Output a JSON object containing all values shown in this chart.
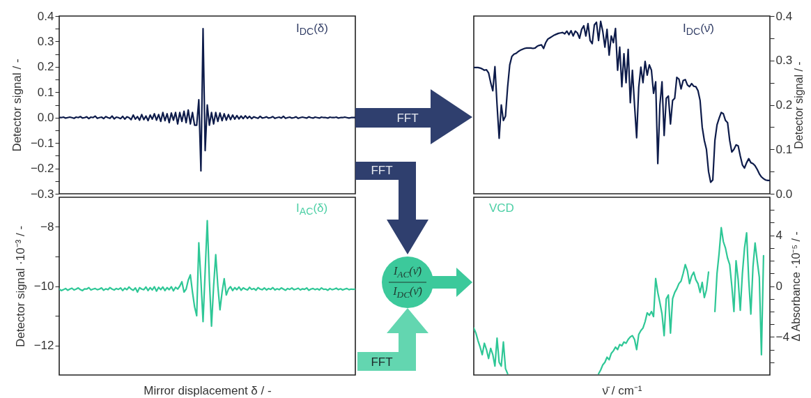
{
  "chart_data": [
    {
      "type": "line",
      "ylabel": "Detector signal / -",
      "ylim": [
        -0.3,
        0.4
      ],
      "yticks": [
        -0.3,
        {
          "value": -0.25,
          "label": null
        },
        -0.2,
        {
          "value": -0.15,
          "label": null
        },
        -0.1,
        {
          "value": -0.05,
          "label": null
        },
        {
          "value": 0,
          "label": "0.0"
        },
        {
          "value": 0.05,
          "label": null
        },
        0.1,
        {
          "value": 0.15,
          "label": null
        },
        0.2,
        {
          "value": 0.25,
          "label": null
        },
        0.3,
        {
          "value": 0.35,
          "label": null
        },
        0.4
      ],
      "tick_labels": "y",
      "annotations": [
        "I$_{DC}$(δ)"
      ],
      "color": "#0d1b4a",
      "categories": [
        null,
        null,
        null,
        null,
        null,
        null,
        null,
        null,
        null,
        null,
        null,
        null,
        null,
        null,
        null,
        null,
        null,
        null,
        null,
        null,
        null,
        null,
        null,
        null,
        null,
        null,
        null,
        null,
        null,
        null,
        null,
        null,
        null,
        null,
        null,
        null,
        null,
        null,
        null,
        null,
        null,
        null,
        null,
        null,
        null,
        null,
        null,
        null,
        null,
        null,
        null,
        null,
        null,
        null,
        null,
        null,
        null,
        null,
        null,
        null,
        null,
        null,
        null,
        null,
        null,
        null,
        null,
        null,
        null,
        null,
        null,
        null,
        null,
        null,
        null,
        null,
        null,
        null,
        null,
        null,
        null,
        null,
        null,
        null,
        null,
        null,
        null,
        null,
        null,
        null,
        null,
        null,
        null,
        null,
        null,
        null,
        null,
        null,
        null,
        null,
        null,
        null,
        null,
        null,
        null,
        null,
        null,
        null,
        null,
        null,
        null,
        null,
        null,
        null,
        null,
        null,
        null,
        null,
        null,
        null,
        null,
        null,
        null,
        null,
        null,
        null,
        null,
        null,
        null,
        null,
        null,
        null,
        null,
        null,
        null,
        null,
        null,
        null,
        null,
        null,
        null
      ],
      "values": [
        0,
        0,
        0.002,
        -0.002,
        0,
        0.002,
        0,
        -0.003,
        0.002,
        0,
        0.004,
        -0.002,
        0,
        0.003,
        -0.004,
        0.002,
        0,
        0.006,
        -0.003,
        0,
        0.002,
        -0.004,
        0.004,
        0,
        -0.003,
        0.006,
        -0.005,
        0.002,
        0,
        -0.004,
        0.005,
        -0.006,
        0.003,
        0,
        -0.008,
        0.01,
        -0.006,
        0.004,
        -0.01,
        0.012,
        -0.008,
        0.006,
        -0.012,
        0.01,
        -0.006,
        0.015,
        -0.01,
        0.012,
        -0.015,
        0.02,
        -0.012,
        0.015,
        -0.02,
        0.018,
        -0.01,
        0.02,
        -0.025,
        0.02,
        -0.015,
        0.025,
        -0.02,
        0.03,
        -0.025,
        0.02,
        -0.03,
        -0.03,
        0.07,
        -0.21,
        0.35,
        -0.13,
        0.05,
        -0.03,
        0.02,
        -0.025,
        0.02,
        -0.015,
        0.018,
        -0.012,
        0.015,
        -0.01,
        0.012,
        -0.008,
        0.01,
        -0.006,
        0.008,
        -0.005,
        0.006,
        -0.004,
        0.007,
        -0.003,
        0.005,
        -0.004,
        0.003,
        0,
        -0.003,
        0.005,
        -0.002,
        0,
        0.003,
        -0.002,
        0,
        0.004,
        -0.003,
        0,
        0.002,
        -0.002,
        0.005,
        -0.003,
        0,
        0.002,
        -0.002,
        0,
        0.003,
        -0.003,
        0,
        0.002,
        0,
        -0.002,
        0.003,
        0,
        -0.002,
        0.002,
        0,
        -0.002,
        0.002,
        0,
        0,
        -0.002,
        0.002,
        0,
        0,
        0.002,
        -0.002,
        0,
        0,
        0.002,
        0,
        -0.002,
        0,
        0,
        0
      ]
    },
    {
      "type": "line",
      "ylabel": "Detector signal / -",
      "ylim": [
        0,
        0.4
      ],
      "yticks": [
        {
          "value": 0,
          "label": "0.0"
        },
        {
          "value": 0.05,
          "label": null
        },
        0.1,
        {
          "value": 0.15,
          "label": null
        },
        0.2,
        {
          "value": 0.25,
          "label": null
        },
        0.3,
        {
          "value": 0.35,
          "label": null
        },
        0.4
      ],
      "tick_labels": "y",
      "annotations": [
        "I$_{DC}$(ν̄)"
      ],
      "color": "#0d1b4a",
      "categories": [
        null,
        null,
        null,
        null,
        null,
        null,
        null,
        null,
        null,
        null,
        null,
        null,
        null,
        null,
        null,
        null,
        null,
        null,
        null,
        null,
        null,
        null,
        null,
        null,
        null,
        null,
        null,
        null,
        null,
        null,
        null,
        null,
        null,
        null,
        null,
        null,
        null,
        null,
        null,
        null,
        null,
        null,
        null,
        null,
        null,
        null,
        null,
        null,
        null,
        null,
        null,
        null,
        null,
        null,
        null,
        null,
        null,
        null,
        null,
        null,
        null,
        null,
        null,
        null,
        null,
        null,
        null,
        null,
        null,
        null,
        null,
        null,
        null,
        null,
        null,
        null,
        null,
        null,
        null,
        null,
        null,
        null,
        null,
        null,
        null,
        null,
        null,
        null,
        null,
        null,
        null,
        null,
        null,
        null,
        null,
        null,
        null,
        null,
        null,
        null,
        null,
        null,
        null,
        null,
        null,
        null,
        null,
        null,
        null,
        null,
        null,
        null,
        null,
        null,
        null,
        null,
        null,
        null,
        null,
        null,
        null,
        null,
        null,
        null,
        null,
        null,
        null,
        null,
        null,
        null,
        null,
        null,
        null,
        null,
        null,
        null,
        null,
        null,
        null,
        null,
        null
      ],
      "values": [
        0.284,
        0.284,
        0.284,
        0.283,
        0.281,
        0.278,
        0.279,
        0.272,
        0.25,
        0.232,
        0.286,
        0.2,
        0.125,
        0.2,
        0.165,
        0.175,
        0.24,
        0.29,
        0.309,
        0.314,
        0.316,
        0.32,
        0.323,
        0.325,
        0.327,
        0.328,
        0.328,
        0.328,
        0.327,
        0.328,
        0.332,
        0.334,
        0.335,
        0.327,
        0.34,
        0.348,
        0.351,
        0.354,
        0.357,
        0.359,
        0.361,
        0.362,
        0.363,
        0.36,
        0.366,
        0.358,
        0.367,
        0.355,
        0.366,
        0.362,
        0.35,
        0.37,
        0.378,
        0.355,
        0.383,
        0.345,
        0.338,
        0.38,
        0.386,
        0.345,
        0.388,
        0.365,
        0.33,
        0.37,
        0.312,
        0.355,
        0.34,
        0.372,
        0.278,
        0.33,
        0.241,
        0.315,
        0.25,
        0.325,
        0.205,
        0.278,
        0.2,
        0.126,
        0.24,
        0.285,
        0.25,
        0.298,
        0.267,
        0.29,
        0.278,
        0.226,
        0.252,
        0.068,
        0.2,
        0.252,
        0.131,
        0.215,
        0.22,
        0.157,
        0.21,
        0.215,
        0.262,
        0.258,
        0.236,
        0.255,
        0.257,
        0.245,
        0.241,
        0.248,
        0.242,
        0.241,
        0.232,
        0.21,
        0.15,
        0.12,
        0.1,
        0.05,
        0.026,
        0.031,
        0.12,
        0.155,
        0.17,
        0.183,
        0.18,
        0.165,
        0.16,
        0.12,
        0.094,
        0.1,
        0.11,
        0.108,
        0.085,
        0.065,
        0.058,
        0.07,
        0.079,
        0.07,
        0.068,
        0.063,
        0.055,
        0.045,
        0.038,
        0.034,
        0.031,
        0.03,
        0.03
      ]
    },
    {
      "type": "line",
      "xlabel": "Mirror displacement δ / -",
      "ylabel": "Detector signal ·10⁻³ / -",
      "ylim": [
        -13,
        -7
      ],
      "yticks": [
        -12,
        {
          "value": -11,
          "label": null
        },
        -10,
        {
          "value": -9,
          "label": null
        },
        -8
      ],
      "tick_labels": "y",
      "annotations": [
        "I$_{AC}$(δ)"
      ],
      "color": "#2ec796",
      "categories": [
        null,
        null,
        null,
        null,
        null,
        null,
        null,
        null,
        null,
        null,
        null,
        null,
        null,
        null,
        null,
        null,
        null,
        null,
        null,
        null,
        null,
        null,
        null,
        null,
        null,
        null,
        null,
        null,
        null,
        null,
        null,
        null,
        null,
        null,
        null,
        null,
        null,
        null,
        null,
        null,
        null,
        null,
        null,
        null,
        null,
        null,
        null,
        null,
        null,
        null,
        null,
        null,
        null,
        null,
        null,
        null,
        null,
        null,
        null,
        null,
        null,
        null,
        null,
        null,
        null,
        null,
        null,
        null,
        null,
        null,
        null,
        null,
        null,
        null,
        null,
        null,
        null,
        null,
        null,
        null,
        null,
        null,
        null,
        null,
        null,
        null,
        null,
        null,
        null,
        null,
        null,
        null,
        null,
        null,
        null,
        null,
        null,
        null,
        null,
        null,
        null,
        null,
        null,
        null,
        null,
        null,
        null,
        null,
        null,
        null,
        null,
        null,
        null,
        null,
        null,
        null,
        null,
        null,
        null,
        null,
        null,
        null,
        null,
        null,
        null,
        null,
        null,
        null,
        null,
        null,
        null,
        null,
        null,
        null,
        null,
        null,
        null,
        null,
        null,
        null,
        null
      ],
      "values": [
        -10.1,
        -10.15,
        -10.12,
        -10.08,
        -10.14,
        -10.1,
        -10.07,
        -10.13,
        -10.1,
        -10.06,
        -10.12,
        -10.15,
        -10.09,
        -10.1,
        -10.05,
        -10.13,
        -10.1,
        -10.08,
        -10.12,
        -10.1,
        -10.06,
        -10.14,
        -10.09,
        -10.12,
        -10.05,
        -10.1,
        -10.13,
        -10.08,
        -10.11,
        -10.06,
        -10.15,
        -10.07,
        -10.12,
        -10.03,
        -10.1,
        -10.14,
        -10.06,
        -10.2,
        -10.05,
        -10.1,
        -10.12,
        -10.03,
        -10.15,
        -10.05,
        -10.13,
        -10.02,
        -10.17,
        -10.04,
        -10.12,
        -10.03,
        -10.15,
        -10.05,
        -10.12,
        -10.02,
        -10.16,
        -10.04,
        -10.1,
        -10.0,
        -9.85,
        -10.2,
        -10.1,
        -9.8,
        -9.62,
        -10.2,
        -10.7,
        -11.0,
        -8.54,
        -9.8,
        -11.2,
        -9.5,
        -7.79,
        -9.8,
        -11.35,
        -10.0,
        -8.94,
        -10.0,
        -10.8,
        -10.2,
        -9.75,
        -10.3,
        -10.1,
        -10.02,
        -10.15,
        -10.05,
        -10.12,
        -10.03,
        -10.14,
        -10.06,
        -10.1,
        -10.13,
        -10.04,
        -10.11,
        -10.08,
        -10.14,
        -10.05,
        -10.1,
        -10.12,
        -10.06,
        -10.13,
        -10.08,
        -10.11,
        -10.05,
        -10.13,
        -10.09,
        -10.12,
        -10.06,
        -10.1,
        -10.14,
        -10.08,
        -10.11,
        -10.06,
        -10.12,
        -10.1,
        -10.07,
        -10.13,
        -10.09,
        -10.11,
        -10.06,
        -10.14,
        -10.1,
        -10.08,
        -10.12,
        -10.09,
        -10.13,
        -10.06,
        -10.11,
        -10.1,
        -10.14,
        -10.08,
        -10.12,
        -10.1,
        -10.07,
        -10.12,
        -10.09,
        -10.13,
        -10.1,
        -10.08,
        -10.12,
        -10.1,
        -10.11,
        -10.1
      ]
    },
    {
      "type": "line",
      "xlabel": "ν̄ / cm⁻¹",
      "ylabel": "Δ Absorbance ·10⁻⁵ / -",
      "ylim": [
        -7,
        7
      ],
      "yticks": [
        {
          "value": -6,
          "label": null
        },
        {
          "value": -5,
          "label": null
        },
        -4,
        {
          "value": -3,
          "label": null
        },
        {
          "value": -2,
          "label": null
        },
        {
          "value": -1,
          "label": null
        },
        0,
        {
          "value": 1,
          "label": null
        },
        {
          "value": 2,
          "label": null
        },
        {
          "value": 3,
          "label": null
        },
        4,
        {
          "value": 5,
          "label": null
        },
        {
          "value": 6,
          "label": null
        }
      ],
      "tick_labels": "y",
      "annotations": [
        "VCD"
      ],
      "color": "#2ec796",
      "categories": [
        null,
        null,
        null,
        null,
        null,
        null,
        null,
        null,
        null,
        null,
        null,
        null,
        null,
        null,
        null,
        null,
        null,
        null,
        null,
        null,
        null,
        null,
        null,
        null,
        null,
        null,
        null,
        null,
        null,
        null,
        null,
        null,
        null,
        null,
        null,
        null,
        null,
        null,
        null,
        null,
        null,
        null,
        null,
        null,
        null,
        null,
        null,
        null,
        null,
        null,
        null,
        null,
        null,
        null,
        null,
        null,
        null,
        null,
        null,
        null,
        null,
        null,
        null,
        null,
        null,
        null,
        null,
        null,
        null,
        null,
        null,
        null,
        null,
        null,
        null,
        null,
        null,
        null,
        null,
        null,
        null,
        null,
        null,
        null,
        null,
        null,
        null,
        null,
        null,
        null,
        null,
        null,
        null,
        null,
        null,
        null,
        null,
        null,
        null,
        null,
        null,
        null,
        null,
        null,
        null,
        null,
        null,
        null,
        null,
        null,
        null,
        null,
        null,
        null,
        null,
        null,
        null,
        null,
        null,
        null,
        null,
        null,
        null,
        null,
        null,
        null,
        null,
        null,
        null,
        null,
        null,
        null,
        null,
        null,
        null,
        null,
        null,
        null,
        null,
        null,
        null
      ],
      "values": [
        -3.3,
        -3.7,
        -4.3,
        -4.8,
        -5.4,
        -4.5,
        -5.0,
        -5.7,
        -4.9,
        -5.4,
        -6.3,
        -4.1,
        -6.0,
        -6.3,
        -4.4,
        -6.5,
        -6.9,
        null,
        null,
        null,
        null,
        null,
        null,
        null,
        null,
        null,
        null,
        null,
        null,
        null,
        null,
        null,
        null,
        null,
        null,
        null,
        null,
        null,
        null,
        null,
        null,
        null,
        null,
        null,
        null,
        null,
        null,
        null,
        null,
        null,
        null,
        null,
        null,
        null,
        null,
        null,
        null,
        null,
        null,
        -6.9,
        -6.6,
        -6.2,
        -6.0,
        -5.6,
        -5.8,
        -5.3,
        -5.1,
        -4.8,
        -5.0,
        -4.6,
        -4.7,
        -4.4,
        -4.5,
        -4.2,
        -4.0,
        -3.9,
        -4.2,
        -5.0,
        -3.8,
        -3.5,
        -3.3,
        -2.8,
        -2.1,
        -2.3,
        -2.0,
        -2.4,
        0.6,
        -0.5,
        -1.3,
        -2.2,
        -3.9,
        -1.0,
        -0.7,
        -3.7,
        -1.0,
        -0.5,
        -0.2,
        0.2,
        0.4,
        1.0,
        1.7,
        1.2,
        0.2,
        0.8,
        1.1,
        0.5,
        0.2,
        -0.5,
        0.3,
        -0.9,
        -0.3,
        1.1,
        null,
        null,
        -2.0,
        1.0,
        2.6,
        4.6,
        3.5,
        3.0,
        2.2,
        1.7,
        0.0,
        -2.0,
        2.0,
        0.5,
        -1.9,
        1.0,
        3.0,
        4.2,
        0.5,
        -2.2,
        1.5,
        3.4,
        2.0,
        0.7,
        -5.4,
        2.4,
        null,
        null,
        null
      ]
    },
    {
      "type": "other",
      "annotations": [
        "FFT",
        "FFT",
        "FFT",
        "I$_{AC}$(ν̄)",
        "I$_{DC}$(ν̄)"
      ]
    }
  ]
}
